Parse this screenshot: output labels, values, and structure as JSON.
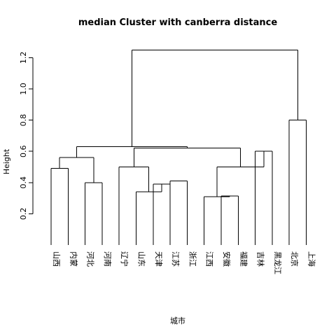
{
  "chart_data": {
    "type": "dendrogram",
    "title": "median Cluster with canberra distance",
    "xlabel": "城市",
    "ylabel": "Height",
    "ylim": [
      0.0,
      1.3
    ],
    "yticks": [
      0.2,
      0.4,
      0.6,
      0.8,
      1.0,
      1.2
    ],
    "leaves": [
      "山西",
      "内蒙",
      "河北",
      "河南",
      "辽宁",
      "山东",
      "天津",
      "江苏",
      "浙江",
      "江西",
      "安徽",
      "福建",
      "吉林",
      "黑龙江",
      "北京",
      "上海"
    ],
    "merges": [
      {
        "left": "山西",
        "right": "内蒙",
        "height": 0.49
      },
      {
        "left": "河北",
        "right": "河南",
        "height": 0.4
      },
      {
        "left": "山西+内蒙",
        "right": "河北+河南",
        "height": 0.56
      },
      {
        "left": "天津",
        "right": "江苏",
        "height": 0.39
      },
      {
        "left": "山东",
        "right": "天津+江苏",
        "height": 0.34
      },
      {
        "left": "江苏",
        "right": "浙江",
        "height": 0.41
      },
      {
        "left": "辽宁",
        "right": "山东+天津+江苏+浙江",
        "height": 0.5
      },
      {
        "left": "安徽",
        "right": "福建",
        "height": 0.315
      },
      {
        "left": "江西",
        "right": "安徽+福建",
        "height": 0.31
      },
      {
        "left": "吉林",
        "right": "黑龙江",
        "height": 0.6
      },
      {
        "left": "江西+安徽+福建",
        "right": "吉林+黑龙江",
        "height": 0.5
      },
      {
        "left": "辽宁...浙江",
        "right": "江西...黑龙江",
        "height": 0.62
      },
      {
        "left": "山西...河南",
        "right": "辽宁...黑龙江",
        "height": 0.63
      },
      {
        "left": "北京",
        "right": "上海",
        "height": 0.8
      },
      {
        "left": "山西...黑龙江",
        "right": "北京+上海",
        "height": 1.25
      }
    ]
  }
}
